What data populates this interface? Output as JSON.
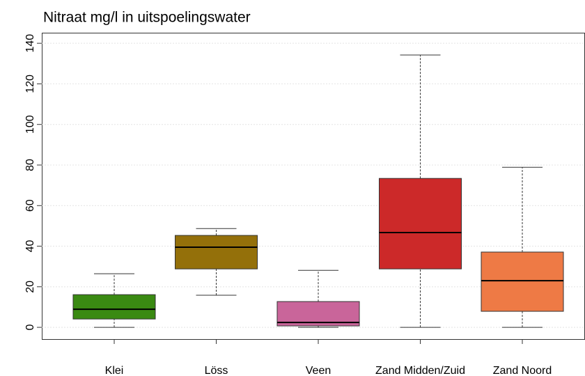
{
  "chart_data": {
    "type": "box",
    "title": "Nitraat mg/l in uitspoelingswater",
    "categories": [
      "Klei",
      "Löss",
      "Veen",
      "Zand Midden/Zuid",
      "Zand Noord"
    ],
    "colors": [
      "#3a8a12",
      "#94700a",
      "#c9659a",
      "#cc2929",
      "#ee7a45"
    ],
    "min": [
      0,
      15.8,
      0,
      0,
      0
    ],
    "q1": [
      4.1,
      28.8,
      0.7,
      28.8,
      7.9
    ],
    "median": [
      8.9,
      39.5,
      2.4,
      46.7,
      23
    ],
    "q3": [
      16.1,
      45.3,
      12.7,
      73.4,
      37.1
    ],
    "max": [
      26.4,
      48.7,
      28.1,
      134.2,
      78.9
    ],
    "ylim": [
      -5.8,
      145.2
    ],
    "yticks": [
      0,
      20,
      40,
      60,
      80,
      100,
      120,
      140
    ],
    "grid": true
  }
}
